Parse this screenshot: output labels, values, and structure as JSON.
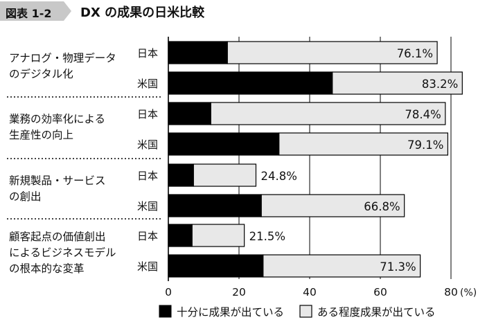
{
  "header": {
    "figure_tag": "図表 1-2",
    "title": "DX の成果の日米比較"
  },
  "colors": {
    "series_1": "#000000",
    "series_2": "#e8e8e8",
    "tag_background": "#c8c8c8",
    "grid": "#000000"
  },
  "chart_data": {
    "type": "bar",
    "orientation": "horizontal",
    "stacked": true,
    "categories": [
      {
        "label": "アナログ・物理データのデジタル化",
        "label_lines": [
          "アナログ・物理データ",
          "のデジタル化"
        ]
      },
      {
        "label": "業務の効率化による生産性の向上",
        "label_lines": [
          "業務の効率化による",
          "生産性の向上"
        ]
      },
      {
        "label": "新規製品・サービスの創出",
        "label_lines": [
          "新規製品・サービス",
          "の創出"
        ]
      },
      {
        "label": "顧客起点の価値創出によるビジネスモデルの根本的な変革",
        "label_lines": [
          "顧客起点の価値創出",
          "によるビジネスモデル",
          "の根本的な変革"
        ]
      }
    ],
    "countries": [
      "日本",
      "米国"
    ],
    "series": [
      {
        "name": "十分に成果が出ている",
        "values": [
          [
            16.7,
            46.4
          ],
          [
            12.0,
            31.3
          ],
          [
            7.1,
            26.3
          ],
          [
            6.7,
            26.8
          ]
        ]
      },
      {
        "name": "ある程度成果が出ている",
        "values": [
          [
            59.4,
            36.8
          ],
          [
            66.4,
            47.8
          ],
          [
            17.7,
            40.5
          ],
          [
            14.8,
            44.5
          ]
        ]
      }
    ],
    "totals": [
      [
        76.1,
        83.2
      ],
      [
        78.4,
        79.1
      ],
      [
        24.8,
        66.8
      ],
      [
        21.5,
        71.3
      ]
    ],
    "data_labels": [
      [
        "76.1%",
        "83.2%"
      ],
      [
        "78.4%",
        "79.1%"
      ],
      [
        "24.8%",
        "66.8%"
      ],
      [
        "21.5%",
        "71.3%"
      ]
    ],
    "xlim": [
      0,
      80
    ],
    "xticks": [
      0,
      20,
      40,
      60,
      80
    ],
    "x_unit": "(%)",
    "legend_position": "bottom",
    "grid": true
  }
}
